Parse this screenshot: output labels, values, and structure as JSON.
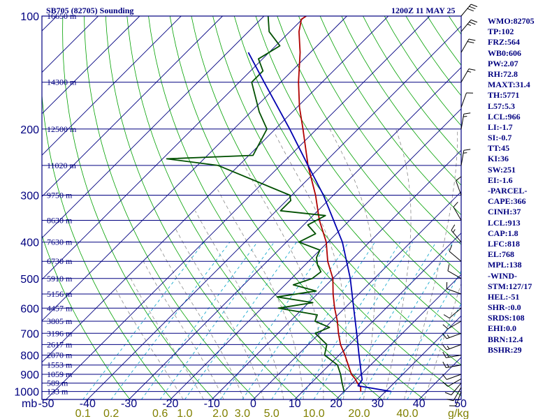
{
  "title_left": "SB705 (82705) Sounding",
  "title_right": "1200Z 11 MAY 25",
  "indices": [
    "WMO:82705",
    "TP:102",
    "FRZ:564",
    "WB0:606",
    "PW:2.07",
    "RH:72.8",
    "MAXT:31.4",
    "TH:5771",
    "L57:5.3",
    "LCL:966",
    "LI:-1.7",
    "SI:-0.7",
    "TT:45",
    "KI:36",
    "SW:251",
    "EI:-1.6",
    "-PARCEL-",
    "CAPE:366",
    "CINH:37",
    "LCL:913",
    "CAP:1.8",
    "LFC:818",
    "EL:768",
    "MPL:138",
    "-WIND-",
    "STM:127/17",
    "HEL:-51",
    "SHR-:0.0",
    "SRDS:108",
    "EHI:0.0",
    "BRN:12.4",
    "BSHR:29"
  ],
  "colors": {
    "text": "#000080",
    "isobar": "#000080",
    "isotherm": "#000080",
    "dry_adiabat": "#00a000",
    "moist_adiabat": "#8a8a8a",
    "mixing_ratio": "#00a0c8",
    "temperature": "#b00000",
    "dewpoint": "#005000",
    "parcel": "#0000b0",
    "mixing_ratio_label": "#808000",
    "wind_barb": "#000000"
  },
  "chart_data": {
    "type": "skew-t",
    "pressure_axis": {
      "unit": "mb",
      "scale": "log",
      "range": [
        1050,
        100
      ],
      "ticks": [
        100,
        200,
        300,
        400,
        500,
        600,
        700,
        800,
        900,
        1000
      ]
    },
    "temperature_axis": {
      "unit": "°C",
      "range": [
        -50,
        50
      ],
      "ticks": [
        "-50",
        "-40",
        "-30",
        "-20",
        "-10",
        "0",
        "10",
        "20",
        "30",
        "40",
        "50"
      ]
    },
    "height_labels": [
      {
        "p": 100,
        "label": "16650 m"
      },
      {
        "p": 150,
        "label": "14300 m"
      },
      {
        "p": 200,
        "label": "12500 m"
      },
      {
        "p": 250,
        "label": "11020 m"
      },
      {
        "p": 300,
        "label": "9750 m"
      },
      {
        "p": 350,
        "label": "8630 m"
      },
      {
        "p": 400,
        "label": "7630 m"
      },
      {
        "p": 450,
        "label": "6730 m"
      },
      {
        "p": 500,
        "label": "5910 m"
      },
      {
        "p": 550,
        "label": "5156 m"
      },
      {
        "p": 600,
        "label": "4457 m"
      },
      {
        "p": 650,
        "label": "3805 m"
      },
      {
        "p": 700,
        "label": "3196 m"
      },
      {
        "p": 750,
        "label": "2617 m"
      },
      {
        "p": 800,
        "label": "2070 m"
      },
      {
        "p": 850,
        "label": "1553 m"
      },
      {
        "p": 900,
        "label": "1059 m"
      },
      {
        "p": 950,
        "label": "589 m"
      },
      {
        "p": 1000,
        "label": "133 m"
      }
    ],
    "mixing_ratio_labels": [
      {
        "w": 0.1,
        "label": "0.1"
      },
      {
        "w": 0.2,
        "label": "0.2"
      },
      {
        "w": 0.6,
        "label": "0.6"
      },
      {
        "w": 1.0,
        "label": "1.0"
      },
      {
        "w": 2.0,
        "label": "2.0"
      },
      {
        "w": 3.0,
        "label": "3.0"
      },
      {
        "w": 5.0,
        "label": "5.0"
      },
      {
        "w": 10.0,
        "label": "10.0"
      },
      {
        "w": 20.0,
        "label": "20.0"
      },
      {
        "w": 40.0,
        "label": "40.0"
      }
    ],
    "mixing_ratio_unit": "g/kg",
    "series": [
      {
        "id": "temperature",
        "points": [
          {
            "p": 1000,
            "t": 24.0
          },
          {
            "p": 975,
            "t": 23.0
          },
          {
            "p": 950,
            "t": 21.2
          },
          {
            "p": 925,
            "t": 19.6
          },
          {
            "p": 900,
            "t": 17.6
          },
          {
            "p": 850,
            "t": 14.6
          },
          {
            "p": 800,
            "t": 11.4
          },
          {
            "p": 750,
            "t": 7.8
          },
          {
            "p": 700,
            "t": 4.6
          },
          {
            "p": 650,
            "t": 1.4
          },
          {
            "p": 600,
            "t": -2.4
          },
          {
            "p": 550,
            "t": -6.2
          },
          {
            "p": 500,
            "t": -10.0
          },
          {
            "p": 450,
            "t": -15.4
          },
          {
            "p": 400,
            "t": -20.4
          },
          {
            "p": 350,
            "t": -27.3
          },
          {
            "p": 300,
            "t": -34.3
          },
          {
            "p": 250,
            "t": -43.3
          },
          {
            "p": 200,
            "t": -53.3
          },
          {
            "p": 175,
            "t": -59.4
          },
          {
            "p": 150,
            "t": -65.7
          },
          {
            "p": 125,
            "t": -72.5
          },
          {
            "p": 110,
            "t": -77.8
          },
          {
            "p": 102,
            "t": -80.2
          },
          {
            "p": 100,
            "t": -79.8
          }
        ]
      },
      {
        "id": "dewpoint",
        "points": [
          {
            "p": 1000,
            "t": 20.0
          },
          {
            "p": 950,
            "t": 17.5
          },
          {
            "p": 900,
            "t": 15.0
          },
          {
            "p": 850,
            "t": 12.0
          },
          {
            "p": 800,
            "t": 6.5
          },
          {
            "p": 750,
            "t": 4.5
          },
          {
            "p": 700,
            "t": -1.0
          },
          {
            "p": 675,
            "t": 1.0
          },
          {
            "p": 650,
            "t": -4.0
          },
          {
            "p": 625,
            "t": -5.0
          },
          {
            "p": 600,
            "t": -16.0
          },
          {
            "p": 580,
            "t": -9.0
          },
          {
            "p": 560,
            "t": -19.0
          },
          {
            "p": 540,
            "t": -11.0
          },
          {
            "p": 520,
            "t": -18.0
          },
          {
            "p": 500,
            "t": -15.0
          },
          {
            "p": 480,
            "t": -14.5
          },
          {
            "p": 460,
            "t": -17.0
          },
          {
            "p": 440,
            "t": -19.0
          },
          {
            "p": 420,
            "t": -20.0
          },
          {
            "p": 400,
            "t": -27.0
          },
          {
            "p": 380,
            "t": -25.0
          },
          {
            "p": 360,
            "t": -29.0
          },
          {
            "p": 340,
            "t": -27.0
          },
          {
            "p": 330,
            "t": -39.0
          },
          {
            "p": 310,
            "t": -39.0
          },
          {
            "p": 300,
            "t": -40.5
          },
          {
            "p": 250,
            "t": -65.0
          },
          {
            "p": 240,
            "t": -79.0
          },
          {
            "p": 235,
            "t": -59.0
          },
          {
            "p": 200,
            "t": -62.0
          },
          {
            "p": 180,
            "t": -68.0
          },
          {
            "p": 150,
            "t": -77.0
          },
          {
            "p": 140,
            "t": -77.0
          },
          {
            "p": 130,
            "t": -81.0
          },
          {
            "p": 120,
            "t": -79.0
          },
          {
            "p": 110,
            "t": -85.0
          },
          {
            "p": 100,
            "t": -89.0
          }
        ]
      },
      {
        "id": "parcel",
        "points": [
          {
            "p": 1000,
            "t": 31.4
          },
          {
            "p": 966,
            "t": 22.0
          },
          {
            "p": 930,
            "t": 21.5
          },
          {
            "p": 900,
            "t": 20.0
          },
          {
            "p": 850,
            "t": 17.5
          },
          {
            "p": 800,
            "t": 14.8
          },
          {
            "p": 700,
            "t": 9.0
          },
          {
            "p": 600,
            "t": 2.2
          },
          {
            "p": 500,
            "t": -5.8
          },
          {
            "p": 400,
            "t": -16.5
          },
          {
            "p": 300,
            "t": -32.4
          },
          {
            "p": 250,
            "t": -43.3
          },
          {
            "p": 200,
            "t": -56.5
          },
          {
            "p": 150,
            "t": -74.0
          },
          {
            "p": 125,
            "t": -85.0
          }
        ]
      }
    ],
    "wind_barbs": [
      {
        "p": 1000,
        "dir": 200,
        "spd": 10
      },
      {
        "p": 975,
        "dir": 210,
        "spd": 10
      },
      {
        "p": 950,
        "dir": 220,
        "spd": 10
      },
      {
        "p": 925,
        "dir": 240,
        "spd": 10
      },
      {
        "p": 900,
        "dir": 250,
        "spd": 10
      },
      {
        "p": 850,
        "dir": 260,
        "spd": 15
      },
      {
        "p": 800,
        "dir": 260,
        "spd": 15
      },
      {
        "p": 750,
        "dir": 250,
        "spd": 15
      },
      {
        "p": 700,
        "dir": 250,
        "spd": 15
      },
      {
        "p": 650,
        "dir": 240,
        "spd": 10
      },
      {
        "p": 600,
        "dir": 230,
        "spd": 10
      },
      {
        "p": 550,
        "dir": 290,
        "spd": 10
      },
      {
        "p": 500,
        "dir": 300,
        "spd": 10
      },
      {
        "p": 450,
        "dir": 310,
        "spd": 10
      },
      {
        "p": 400,
        "dir": 320,
        "spd": 15
      },
      {
        "p": 350,
        "dir": 330,
        "spd": 10
      },
      {
        "p": 300,
        "dir": 340,
        "spd": 10
      },
      {
        "p": 250,
        "dir": 10,
        "spd": 15
      },
      {
        "p": 200,
        "dir": 10,
        "spd": 15
      },
      {
        "p": 175,
        "dir": 20,
        "spd": 10
      },
      {
        "p": 150,
        "dir": 30,
        "spd": 15
      },
      {
        "p": 125,
        "dir": 30,
        "spd": 20
      },
      {
        "p": 110,
        "dir": 40,
        "spd": 25
      },
      {
        "p": 100,
        "dir": 40,
        "spd": 30
      }
    ]
  }
}
